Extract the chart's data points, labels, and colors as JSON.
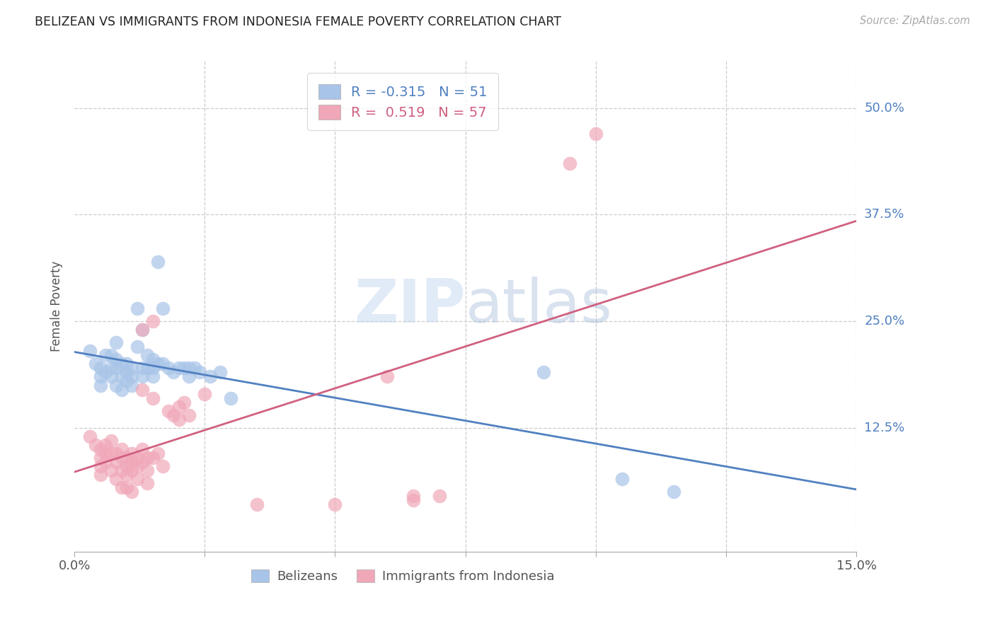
{
  "title": "BELIZEAN VS IMMIGRANTS FROM INDONESIA FEMALE POVERTY CORRELATION CHART",
  "source": "Source: ZipAtlas.com",
  "ylabel": "Female Poverty",
  "ytick_labels": [
    "50.0%",
    "37.5%",
    "25.0%",
    "12.5%"
  ],
  "ytick_values": [
    0.5,
    0.375,
    0.25,
    0.125
  ],
  "xlim": [
    0.0,
    0.15
  ],
  "ylim": [
    -0.02,
    0.555
  ],
  "watermark": "ZIPatlas",
  "legend_blue_r": "-0.315",
  "legend_blue_n": "51",
  "legend_pink_r": "0.519",
  "legend_pink_n": "57",
  "legend_label_blue": "Belizeans",
  "legend_label_pink": "Immigrants from Indonesia",
  "blue_color": "#a8c4e8",
  "pink_color": "#f0a8b8",
  "blue_line_color": "#5080c0",
  "pink_line_color": "#d06080",
  "blue_scatter": [
    [
      0.003,
      0.215
    ],
    [
      0.004,
      0.2
    ],
    [
      0.005,
      0.195
    ],
    [
      0.005,
      0.185
    ],
    [
      0.005,
      0.175
    ],
    [
      0.006,
      0.21
    ],
    [
      0.006,
      0.19
    ],
    [
      0.007,
      0.21
    ],
    [
      0.007,
      0.195
    ],
    [
      0.007,
      0.185
    ],
    [
      0.008,
      0.225
    ],
    [
      0.008,
      0.205
    ],
    [
      0.008,
      0.195
    ],
    [
      0.008,
      0.175
    ],
    [
      0.009,
      0.2
    ],
    [
      0.009,
      0.185
    ],
    [
      0.009,
      0.17
    ],
    [
      0.01,
      0.2
    ],
    [
      0.01,
      0.19
    ],
    [
      0.01,
      0.18
    ],
    [
      0.011,
      0.195
    ],
    [
      0.011,
      0.185
    ],
    [
      0.011,
      0.175
    ],
    [
      0.012,
      0.265
    ],
    [
      0.012,
      0.22
    ],
    [
      0.013,
      0.24
    ],
    [
      0.013,
      0.195
    ],
    [
      0.013,
      0.185
    ],
    [
      0.014,
      0.21
    ],
    [
      0.014,
      0.195
    ],
    [
      0.015,
      0.205
    ],
    [
      0.015,
      0.195
    ],
    [
      0.015,
      0.185
    ],
    [
      0.016,
      0.32
    ],
    [
      0.016,
      0.2
    ],
    [
      0.017,
      0.265
    ],
    [
      0.017,
      0.2
    ],
    [
      0.018,
      0.195
    ],
    [
      0.019,
      0.19
    ],
    [
      0.02,
      0.195
    ],
    [
      0.021,
      0.195
    ],
    [
      0.022,
      0.195
    ],
    [
      0.022,
      0.185
    ],
    [
      0.023,
      0.195
    ],
    [
      0.024,
      0.19
    ],
    [
      0.026,
      0.185
    ],
    [
      0.028,
      0.19
    ],
    [
      0.03,
      0.16
    ],
    [
      0.09,
      0.19
    ],
    [
      0.105,
      0.065
    ],
    [
      0.115,
      0.05
    ]
  ],
  "pink_scatter": [
    [
      0.003,
      0.115
    ],
    [
      0.004,
      0.105
    ],
    [
      0.005,
      0.1
    ],
    [
      0.005,
      0.09
    ],
    [
      0.005,
      0.08
    ],
    [
      0.005,
      0.07
    ],
    [
      0.006,
      0.105
    ],
    [
      0.006,
      0.095
    ],
    [
      0.006,
      0.085
    ],
    [
      0.007,
      0.11
    ],
    [
      0.007,
      0.095
    ],
    [
      0.007,
      0.075
    ],
    [
      0.008,
      0.095
    ],
    [
      0.008,
      0.085
    ],
    [
      0.008,
      0.065
    ],
    [
      0.009,
      0.1
    ],
    [
      0.009,
      0.09
    ],
    [
      0.009,
      0.075
    ],
    [
      0.009,
      0.055
    ],
    [
      0.01,
      0.09
    ],
    [
      0.01,
      0.08
    ],
    [
      0.01,
      0.07
    ],
    [
      0.01,
      0.055
    ],
    [
      0.011,
      0.095
    ],
    [
      0.011,
      0.085
    ],
    [
      0.011,
      0.075
    ],
    [
      0.011,
      0.05
    ],
    [
      0.012,
      0.09
    ],
    [
      0.012,
      0.08
    ],
    [
      0.012,
      0.065
    ],
    [
      0.013,
      0.24
    ],
    [
      0.013,
      0.17
    ],
    [
      0.013,
      0.1
    ],
    [
      0.013,
      0.085
    ],
    [
      0.014,
      0.09
    ],
    [
      0.014,
      0.075
    ],
    [
      0.014,
      0.06
    ],
    [
      0.015,
      0.25
    ],
    [
      0.015,
      0.16
    ],
    [
      0.015,
      0.09
    ],
    [
      0.016,
      0.095
    ],
    [
      0.017,
      0.08
    ],
    [
      0.018,
      0.145
    ],
    [
      0.019,
      0.14
    ],
    [
      0.02,
      0.15
    ],
    [
      0.02,
      0.135
    ],
    [
      0.021,
      0.155
    ],
    [
      0.022,
      0.14
    ],
    [
      0.025,
      0.165
    ],
    [
      0.035,
      0.035
    ],
    [
      0.05,
      0.035
    ],
    [
      0.06,
      0.185
    ],
    [
      0.065,
      0.045
    ],
    [
      0.07,
      0.045
    ],
    [
      0.095,
      0.435
    ],
    [
      0.1,
      0.47
    ],
    [
      0.065,
      0.04
    ]
  ],
  "background_color": "#ffffff",
  "grid_color": "#cccccc",
  "title_color": "#222222",
  "axis_label_color": "#555555",
  "ytick_color": "#5080c0",
  "xtick_color": "#555555"
}
